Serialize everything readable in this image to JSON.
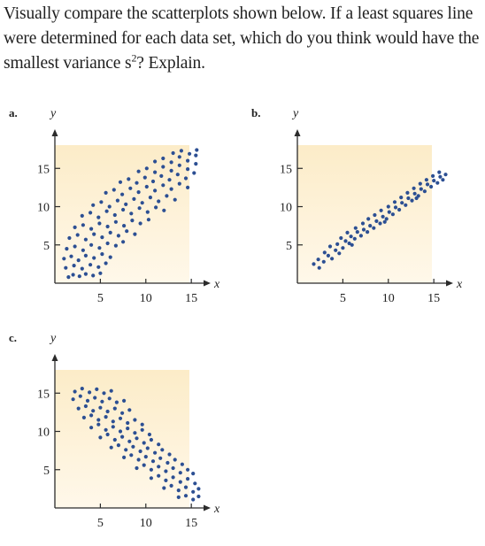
{
  "question": {
    "text_before_sup": "Visually compare the scatterplots shown below. If a least squares line were determined for each data set, which do you think would have the smallest variance s",
    "superscript": "2",
    "text_after_sup": "? Explain."
  },
  "colors": {
    "plot_background_top": "#fcecc8",
    "plot_background_bottom": "#fff8ea",
    "point": "#2c4f93",
    "axis": "#2b2b2b"
  },
  "chart_data": [
    {
      "type": "scatter",
      "panel_label": "a.",
      "xlabel": "x",
      "ylabel": "y",
      "x_ticks": [
        "5",
        "10",
        "15"
      ],
      "y_ticks": [
        "5",
        "10",
        "15"
      ],
      "xlim": [
        0,
        18
      ],
      "ylim": [
        0,
        18.5
      ],
      "trend": "positive, wide spread",
      "points": [
        [
          1.5,
          0.8
        ],
        [
          2.0,
          1.1
        ],
        [
          2.7,
          0.9
        ],
        [
          3.4,
          1.2
        ],
        [
          4.2,
          1.0
        ],
        [
          5.0,
          1.3
        ],
        [
          1.2,
          2.0
        ],
        [
          2.1,
          2.3
        ],
        [
          3.0,
          1.9
        ],
        [
          3.9,
          2.4
        ],
        [
          4.8,
          2.1
        ],
        [
          5.6,
          2.6
        ],
        [
          1.0,
          3.2
        ],
        [
          1.8,
          3.5
        ],
        [
          2.6,
          3.0
        ],
        [
          3.4,
          3.6
        ],
        [
          4.3,
          3.3
        ],
        [
          5.2,
          3.8
        ],
        [
          6.1,
          3.4
        ],
        [
          1.3,
          4.5
        ],
        [
          2.2,
          4.8
        ],
        [
          3.1,
          4.3
        ],
        [
          4.0,
          5.0
        ],
        [
          4.9,
          4.6
        ],
        [
          5.8,
          5.2
        ],
        [
          6.7,
          4.9
        ],
        [
          7.5,
          5.4
        ],
        [
          1.6,
          5.9
        ],
        [
          2.5,
          6.3
        ],
        [
          3.4,
          5.7
        ],
        [
          4.3,
          6.4
        ],
        [
          5.2,
          6.0
        ],
        [
          6.1,
          6.6
        ],
        [
          7.0,
          6.2
        ],
        [
          7.9,
          6.8
        ],
        [
          8.8,
          6.4
        ],
        [
          2.2,
          7.3
        ],
        [
          3.1,
          7.6
        ],
        [
          4.0,
          7.1
        ],
        [
          4.9,
          7.8
        ],
        [
          5.8,
          7.4
        ],
        [
          6.7,
          8.0
        ],
        [
          7.6,
          7.5
        ],
        [
          8.5,
          8.2
        ],
        [
          9.4,
          7.8
        ],
        [
          10.3,
          8.3
        ],
        [
          3.0,
          8.8
        ],
        [
          3.9,
          9.2
        ],
        [
          4.8,
          8.6
        ],
        [
          5.7,
          9.4
        ],
        [
          6.6,
          8.9
        ],
        [
          7.5,
          9.6
        ],
        [
          8.4,
          9.1
        ],
        [
          9.3,
          9.8
        ],
        [
          10.2,
          9.3
        ],
        [
          11.1,
          9.9
        ],
        [
          12.0,
          9.5
        ],
        [
          4.2,
          10.2
        ],
        [
          5.1,
          10.6
        ],
        [
          6.0,
          10.0
        ],
        [
          6.9,
          10.8
        ],
        [
          7.8,
          10.3
        ],
        [
          8.7,
          11.0
        ],
        [
          9.6,
          10.5
        ],
        [
          10.5,
          11.2
        ],
        [
          11.4,
          10.7
        ],
        [
          12.3,
          11.4
        ],
        [
          13.2,
          10.9
        ],
        [
          5.6,
          11.8
        ],
        [
          6.5,
          12.2
        ],
        [
          7.4,
          11.6
        ],
        [
          8.3,
          12.4
        ],
        [
          9.2,
          11.9
        ],
        [
          10.1,
          12.6
        ],
        [
          11.0,
          12.1
        ],
        [
          11.9,
          12.8
        ],
        [
          12.8,
          12.3
        ],
        [
          13.7,
          13.0
        ],
        [
          14.6,
          12.5
        ],
        [
          7.2,
          13.2
        ],
        [
          8.1,
          13.6
        ],
        [
          9.0,
          13.1
        ],
        [
          9.9,
          13.8
        ],
        [
          10.8,
          13.3
        ],
        [
          11.7,
          14.0
        ],
        [
          12.6,
          13.5
        ],
        [
          13.5,
          14.2
        ],
        [
          14.4,
          13.7
        ],
        [
          15.3,
          14.4
        ],
        [
          9.2,
          14.6
        ],
        [
          10.1,
          15.0
        ],
        [
          11.0,
          14.5
        ],
        [
          11.9,
          15.2
        ],
        [
          12.8,
          14.7
        ],
        [
          13.7,
          15.4
        ],
        [
          14.6,
          14.9
        ],
        [
          15.5,
          15.6
        ],
        [
          11.0,
          15.9
        ],
        [
          11.9,
          16.3
        ],
        [
          12.8,
          15.8
        ],
        [
          13.7,
          16.5
        ],
        [
          14.6,
          16.0
        ],
        [
          15.5,
          16.7
        ],
        [
          13.0,
          17.0
        ],
        [
          13.9,
          17.3
        ],
        [
          14.8,
          16.9
        ],
        [
          15.6,
          17.4
        ]
      ]
    },
    {
      "type": "scatter",
      "panel_label": "b.",
      "xlabel": "x",
      "ylabel": "y",
      "x_ticks": [
        "5",
        "10",
        "15"
      ],
      "y_ticks": [
        "5",
        "10",
        "15"
      ],
      "xlim": [
        0,
        18
      ],
      "ylim": [
        0,
        18.5
      ],
      "trend": "positive, narrow spread",
      "points": [
        [
          1.8,
          2.5
        ],
        [
          2.3,
          3.1
        ],
        [
          2.9,
          2.8
        ],
        [
          3.4,
          3.6
        ],
        [
          3.0,
          4.0
        ],
        [
          3.8,
          3.2
        ],
        [
          4.2,
          4.3
        ],
        [
          4.6,
          3.9
        ],
        [
          3.6,
          4.8
        ],
        [
          4.4,
          5.1
        ],
        [
          5.0,
          4.6
        ],
        [
          5.3,
          5.5
        ],
        [
          4.8,
          5.9
        ],
        [
          5.7,
          5.2
        ],
        [
          5.9,
          6.1
        ],
        [
          6.3,
          5.8
        ],
        [
          5.5,
          6.6
        ],
        [
          6.6,
          6.7
        ],
        [
          7.0,
          6.2
        ],
        [
          6.4,
          7.2
        ],
        [
          7.3,
          7.0
        ],
        [
          7.7,
          6.7
        ],
        [
          7.2,
          7.8
        ],
        [
          8.0,
          7.5
        ],
        [
          8.4,
          7.2
        ],
        [
          7.8,
          8.4
        ],
        [
          8.7,
          8.1
        ],
        [
          9.1,
          7.8
        ],
        [
          8.5,
          8.9
        ],
        [
          9.4,
          8.7
        ],
        [
          9.8,
          8.4
        ],
        [
          9.2,
          9.5
        ],
        [
          10.1,
          9.3
        ],
        [
          10.5,
          9.0
        ],
        [
          10.0,
          10.0
        ],
        [
          10.8,
          9.9
        ],
        [
          11.2,
          9.6
        ],
        [
          10.7,
          10.6
        ],
        [
          11.5,
          10.5
        ],
        [
          11.9,
          10.2
        ],
        [
          11.4,
          11.2
        ],
        [
          12.2,
          11.1
        ],
        [
          12.6,
          10.8
        ],
        [
          12.1,
          11.8
        ],
        [
          12.9,
          11.7
        ],
        [
          13.3,
          11.4
        ],
        [
          12.8,
          12.4
        ],
        [
          13.6,
          12.3
        ],
        [
          14.0,
          12.0
        ],
        [
          13.5,
          13.0
        ],
        [
          14.3,
          12.9
        ],
        [
          14.7,
          12.6
        ],
        [
          14.2,
          13.5
        ],
        [
          15.0,
          13.4
        ],
        [
          15.4,
          13.1
        ],
        [
          14.9,
          14.0
        ],
        [
          15.7,
          13.9
        ],
        [
          16.0,
          13.5
        ],
        [
          15.6,
          14.5
        ],
        [
          16.3,
          14.2
        ],
        [
          2.4,
          2.0
        ],
        [
          6.0,
          5.0
        ],
        [
          9.6,
          8.0
        ],
        [
          13.1,
          11.1
        ]
      ]
    },
    {
      "type": "scatter",
      "panel_label": "c.",
      "xlabel": "x",
      "ylabel": "y",
      "x_ticks": [
        "5",
        "10",
        "15"
      ],
      "y_ticks": [
        "5",
        "10",
        "15"
      ],
      "xlim": [
        0,
        18
      ],
      "ylim": [
        0,
        18.5
      ],
      "trend": "negative, moderate spread",
      "points": [
        [
          2.2,
          15.2
        ],
        [
          3.0,
          15.6
        ],
        [
          3.8,
          15.1
        ],
        [
          4.6,
          15.5
        ],
        [
          5.4,
          15.0
        ],
        [
          6.2,
          15.3
        ],
        [
          2.0,
          14.2
        ],
        [
          2.8,
          14.6
        ],
        [
          3.6,
          14.0
        ],
        [
          4.4,
          14.4
        ],
        [
          5.2,
          13.9
        ],
        [
          6.0,
          14.3
        ],
        [
          6.8,
          13.8
        ],
        [
          7.6,
          14.0
        ],
        [
          2.6,
          13.0
        ],
        [
          3.4,
          13.3
        ],
        [
          4.2,
          12.7
        ],
        [
          5.0,
          13.1
        ],
        [
          5.8,
          12.6
        ],
        [
          6.6,
          13.0
        ],
        [
          7.4,
          12.4
        ],
        [
          8.2,
          12.8
        ],
        [
          3.2,
          11.8
        ],
        [
          4.0,
          12.1
        ],
        [
          4.8,
          11.5
        ],
        [
          5.6,
          11.9
        ],
        [
          6.4,
          11.3
        ],
        [
          7.2,
          11.7
        ],
        [
          8.0,
          11.1
        ],
        [
          8.8,
          11.5
        ],
        [
          9.6,
          10.9
        ],
        [
          4.0,
          10.5
        ],
        [
          4.8,
          10.9
        ],
        [
          5.6,
          10.2
        ],
        [
          6.4,
          10.6
        ],
        [
          7.2,
          10.0
        ],
        [
          8.0,
          10.4
        ],
        [
          8.8,
          9.8
        ],
        [
          9.6,
          10.2
        ],
        [
          10.4,
          9.6
        ],
        [
          5.0,
          9.2
        ],
        [
          5.8,
          9.6
        ],
        [
          6.6,
          8.9
        ],
        [
          7.4,
          9.3
        ],
        [
          8.2,
          8.7
        ],
        [
          9.0,
          9.1
        ],
        [
          9.8,
          8.5
        ],
        [
          10.6,
          8.9
        ],
        [
          11.4,
          8.3
        ],
        [
          6.2,
          7.9
        ],
        [
          7.0,
          8.2
        ],
        [
          7.8,
          7.6
        ],
        [
          8.6,
          8.0
        ],
        [
          9.4,
          7.4
        ],
        [
          10.2,
          7.8
        ],
        [
          11.0,
          7.2
        ],
        [
          11.8,
          7.6
        ],
        [
          12.6,
          7.0
        ],
        [
          7.6,
          6.6
        ],
        [
          8.4,
          6.9
        ],
        [
          9.2,
          6.3
        ],
        [
          10.0,
          6.7
        ],
        [
          10.8,
          6.1
        ],
        [
          11.6,
          6.5
        ],
        [
          12.4,
          5.9
        ],
        [
          13.2,
          6.3
        ],
        [
          14.0,
          5.7
        ],
        [
          9.0,
          5.2
        ],
        [
          9.8,
          5.6
        ],
        [
          10.6,
          5.0
        ],
        [
          11.4,
          5.4
        ],
        [
          12.2,
          4.8
        ],
        [
          13.0,
          5.2
        ],
        [
          13.8,
          4.6
        ],
        [
          14.6,
          5.0
        ],
        [
          15.2,
          4.5
        ],
        [
          10.6,
          3.9
        ],
        [
          11.4,
          4.2
        ],
        [
          12.2,
          3.6
        ],
        [
          13.0,
          4.0
        ],
        [
          13.8,
          3.4
        ],
        [
          14.6,
          3.8
        ],
        [
          15.4,
          3.2
        ],
        [
          12.0,
          2.6
        ],
        [
          12.8,
          2.9
        ],
        [
          13.6,
          2.3
        ],
        [
          14.4,
          2.7
        ],
        [
          15.2,
          2.1
        ],
        [
          15.8,
          2.5
        ],
        [
          13.6,
          1.4
        ],
        [
          14.4,
          1.6
        ],
        [
          15.2,
          1.1
        ],
        [
          15.8,
          1.5
        ]
      ]
    }
  ]
}
